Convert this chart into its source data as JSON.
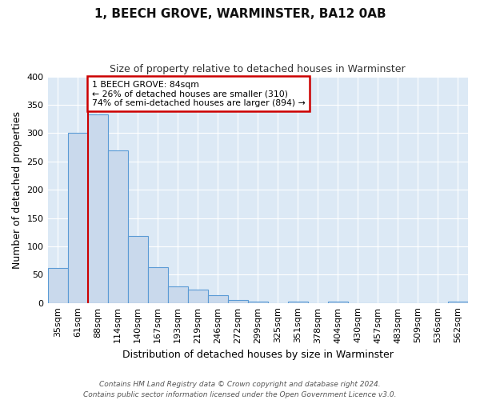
{
  "title": "1, BEECH GROVE, WARMINSTER, BA12 0AB",
  "subtitle": "Size of property relative to detached houses in Warminster",
  "xlabel": "Distribution of detached houses by size in Warminster",
  "ylabel": "Number of detached properties",
  "bar_labels": [
    "35sqm",
    "61sqm",
    "88sqm",
    "114sqm",
    "140sqm",
    "167sqm",
    "193sqm",
    "219sqm",
    "246sqm",
    "272sqm",
    "299sqm",
    "325sqm",
    "351sqm",
    "378sqm",
    "404sqm",
    "430sqm",
    "457sqm",
    "483sqm",
    "509sqm",
    "536sqm",
    "562sqm"
  ],
  "bar_heights": [
    62,
    300,
    333,
    270,
    118,
    63,
    29,
    24,
    13,
    5,
    2,
    0,
    2,
    0,
    2,
    0,
    0,
    0,
    0,
    0,
    2
  ],
  "bar_color": "#c9d9ec",
  "bar_edge_color": "#5b9bd5",
  "annotation_title": "1 BEECH GROVE: 84sqm",
  "annotation_line1": "← 26% of detached houses are smaller (310)",
  "annotation_line2": "74% of semi-detached houses are larger (894) →",
  "annotation_box_facecolor": "#ffffff",
  "annotation_box_edgecolor": "#cc0000",
  "vline_color": "#cc0000",
  "footer1": "Contains HM Land Registry data © Crown copyright and database right 2024.",
  "footer2": "Contains public sector information licensed under the Open Government Licence v3.0.",
  "ylim": [
    0,
    400
  ],
  "fig_bg_color": "#ffffff",
  "plot_bg_color": "#dce9f5",
  "grid_color": "#ffffff",
  "title_fontsize": 11,
  "subtitle_fontsize": 9,
  "ylabel_fontsize": 9,
  "xlabel_fontsize": 9,
  "tick_fontsize": 8,
  "footer_fontsize": 6.5
}
